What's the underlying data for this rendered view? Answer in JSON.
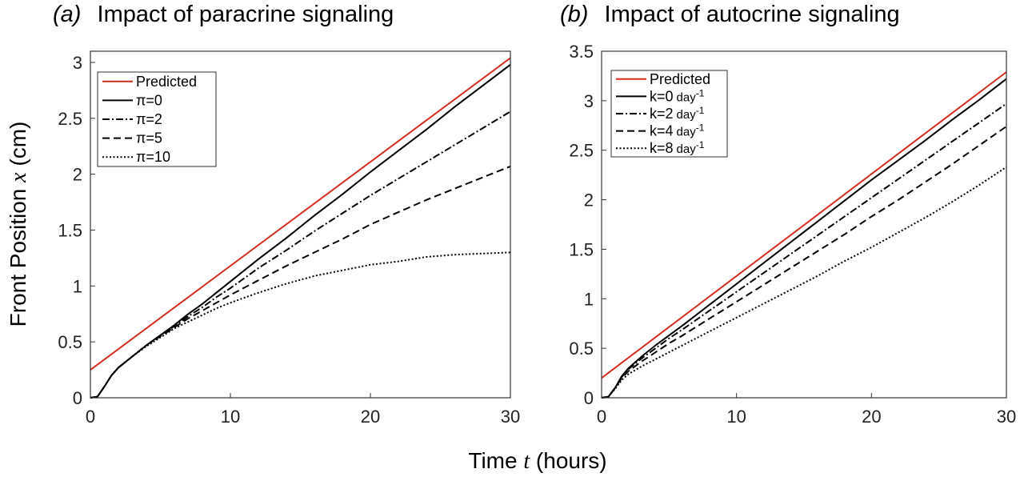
{
  "xlabel": {
    "prefix": "Time ",
    "var": "t",
    "suffix": " (hours)"
  },
  "ylabel": {
    "prefix": "Front Position ",
    "var": "x",
    "suffix": " (cm)"
  },
  "chart_data": [
    {
      "type": "line",
      "panel_tag": "(a)",
      "title": "Impact of paracrine signaling",
      "xlim": [
        0,
        30
      ],
      "ylim": [
        0,
        3.1
      ],
      "x_ticks": [
        "0",
        "10",
        "20",
        "30"
      ],
      "y_ticks": [
        "0",
        "0.5",
        "1",
        "1.5",
        "2",
        "2.5",
        "3"
      ],
      "legend_position": "top-left",
      "grid": false,
      "series": [
        {
          "name": "Predicted",
          "color": "#d62c1f",
          "dash": "solid",
          "x": [
            0,
            30
          ],
          "y": [
            0.25,
            3.04
          ]
        },
        {
          "name": "π=0",
          "color": "#000000",
          "dash": "solid",
          "x": [
            0,
            0.5,
            1,
            1.5,
            2,
            3,
            4,
            5,
            6,
            7,
            8,
            9,
            10,
            12,
            14,
            16,
            18,
            20,
            22,
            24,
            26,
            28,
            30
          ],
          "y": [
            0,
            0.01,
            0.1,
            0.2,
            0.27,
            0.37,
            0.47,
            0.56,
            0.65,
            0.75,
            0.84,
            0.94,
            1.04,
            1.24,
            1.43,
            1.63,
            1.82,
            2.02,
            2.21,
            2.4,
            2.6,
            2.79,
            2.98
          ]
        },
        {
          "name": "π=2",
          "color": "#000000",
          "dash": "dashdot",
          "x": [
            0,
            0.5,
            1,
            1.5,
            2,
            3,
            4,
            5,
            6,
            7,
            8,
            9,
            10,
            12,
            14,
            16,
            18,
            20,
            22,
            24,
            26,
            28,
            30
          ],
          "y": [
            0,
            0.01,
            0.1,
            0.2,
            0.27,
            0.37,
            0.47,
            0.56,
            0.64,
            0.73,
            0.81,
            0.9,
            0.98,
            1.16,
            1.32,
            1.49,
            1.65,
            1.81,
            1.96,
            2.11,
            2.26,
            2.41,
            2.56
          ]
        },
        {
          "name": "π=5",
          "color": "#000000",
          "dash": "dashed",
          "x": [
            0,
            0.5,
            1,
            1.5,
            2,
            3,
            4,
            5,
            6,
            7,
            8,
            9,
            10,
            12,
            14,
            16,
            18,
            20,
            22,
            24,
            26,
            28,
            30
          ],
          "y": [
            0,
            0.01,
            0.1,
            0.2,
            0.27,
            0.37,
            0.47,
            0.55,
            0.63,
            0.71,
            0.78,
            0.85,
            0.92,
            1.05,
            1.18,
            1.3,
            1.42,
            1.55,
            1.66,
            1.77,
            1.87,
            1.97,
            2.07
          ]
        },
        {
          "name": "π=10",
          "color": "#000000",
          "dash": "dotted",
          "x": [
            0,
            0.5,
            1,
            1.5,
            2,
            3,
            4,
            5,
            6,
            7,
            8,
            9,
            10,
            12,
            14,
            16,
            18,
            20,
            22,
            24,
            26,
            28,
            30
          ],
          "y": [
            0,
            0.01,
            0.1,
            0.2,
            0.27,
            0.37,
            0.46,
            0.54,
            0.62,
            0.68,
            0.74,
            0.8,
            0.85,
            0.94,
            1.02,
            1.09,
            1.14,
            1.19,
            1.22,
            1.26,
            1.28,
            1.29,
            1.3
          ]
        }
      ]
    },
    {
      "type": "line",
      "panel_tag": "(b)",
      "title": "Impact of autocrine signaling",
      "xlim": [
        0,
        30
      ],
      "ylim": [
        0,
        3.5
      ],
      "x_ticks": [
        "0",
        "10",
        "20",
        "30"
      ],
      "y_ticks": [
        "0",
        "0.5",
        "1",
        "1.5",
        "2",
        "2.5",
        "3",
        "3.5"
      ],
      "legend_position": "top-left",
      "grid": false,
      "series": [
        {
          "name": "Predicted",
          "color": "#d62c1f",
          "dash": "solid",
          "x": [
            0,
            30
          ],
          "y": [
            0.2,
            3.29
          ]
        },
        {
          "name": "k=0 day",
          "unit_power": "-1",
          "color": "#000000",
          "dash": "solid",
          "x": [
            0,
            0.5,
            1,
            1.5,
            2,
            3,
            4,
            5,
            6,
            8,
            10,
            12,
            14,
            16,
            18,
            20,
            22,
            24,
            26,
            28,
            30
          ],
          "y": [
            0,
            0.01,
            0.1,
            0.22,
            0.3,
            0.42,
            0.53,
            0.63,
            0.73,
            0.94,
            1.15,
            1.36,
            1.57,
            1.78,
            1.99,
            2.2,
            2.4,
            2.6,
            2.81,
            3.01,
            3.22
          ]
        },
        {
          "name": "k=2 day",
          "unit_power": "-1",
          "color": "#000000",
          "dash": "dashdot",
          "x": [
            0,
            0.5,
            1,
            1.5,
            2,
            3,
            4,
            5,
            6,
            8,
            10,
            12,
            14,
            16,
            18,
            20,
            22,
            24,
            26,
            28,
            30
          ],
          "y": [
            0,
            0.01,
            0.1,
            0.21,
            0.29,
            0.4,
            0.5,
            0.6,
            0.69,
            0.88,
            1.07,
            1.26,
            1.45,
            1.64,
            1.83,
            2.02,
            2.21,
            2.4,
            2.59,
            2.78,
            2.97
          ]
        },
        {
          "name": "k=4 day",
          "unit_power": "-1",
          "color": "#000000",
          "dash": "dashed",
          "x": [
            0,
            0.5,
            1,
            1.5,
            2,
            3,
            4,
            5,
            6,
            8,
            10,
            12,
            14,
            16,
            18,
            20,
            22,
            24,
            26,
            28,
            30
          ],
          "y": [
            0,
            0.01,
            0.1,
            0.2,
            0.27,
            0.37,
            0.46,
            0.55,
            0.63,
            0.8,
            0.97,
            1.14,
            1.31,
            1.48,
            1.65,
            1.83,
            2.0,
            2.18,
            2.36,
            2.55,
            2.74
          ]
        },
        {
          "name": "k=8 day",
          "unit_power": "-1",
          "color": "#000000",
          "dash": "dotted",
          "x": [
            0,
            0.5,
            1,
            1.5,
            2,
            3,
            4,
            5,
            6,
            8,
            10,
            12,
            14,
            16,
            18,
            20,
            22,
            24,
            26,
            28,
            30
          ],
          "y": [
            0,
            0.01,
            0.09,
            0.18,
            0.24,
            0.32,
            0.39,
            0.46,
            0.53,
            0.67,
            0.81,
            0.95,
            1.09,
            1.23,
            1.38,
            1.52,
            1.67,
            1.82,
            1.98,
            2.15,
            2.33
          ]
        }
      ]
    }
  ]
}
